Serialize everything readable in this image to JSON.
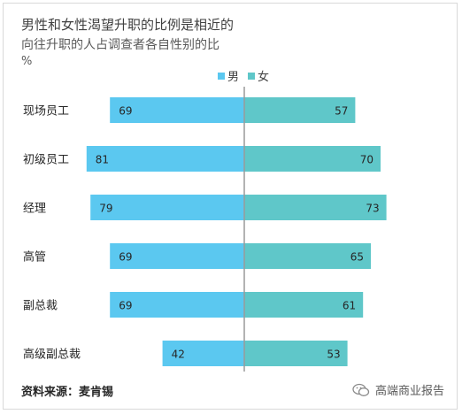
{
  "title": "男性和女性渴望升职的比例是相近的",
  "subtitle": "向往升职的人占调查者各自性别的比",
  "unit": "%",
  "source": "资料来源：麦肯锡",
  "brand": "高端商业报告",
  "colors": {
    "male": "#5bc8f0",
    "female": "#5fc7c9",
    "axis": "#9a9a9a"
  },
  "chart_data": {
    "type": "bar",
    "orientation": "diverging-horizontal",
    "categories": [
      "现场员工",
      "初级员工",
      "经理",
      "高管",
      "副总裁",
      "高级副总裁"
    ],
    "series": [
      {
        "name": "男",
        "values": [
          69,
          81,
          79,
          69,
          69,
          42
        ]
      },
      {
        "name": "女",
        "values": [
          57,
          70,
          73,
          65,
          61,
          53
        ]
      }
    ],
    "legend": "top-center",
    "title": "男性和女性渴望升职的比例是相近的",
    "subtitle": "向往升职的人占调查者各自性别的比",
    "ylabel": "%"
  }
}
